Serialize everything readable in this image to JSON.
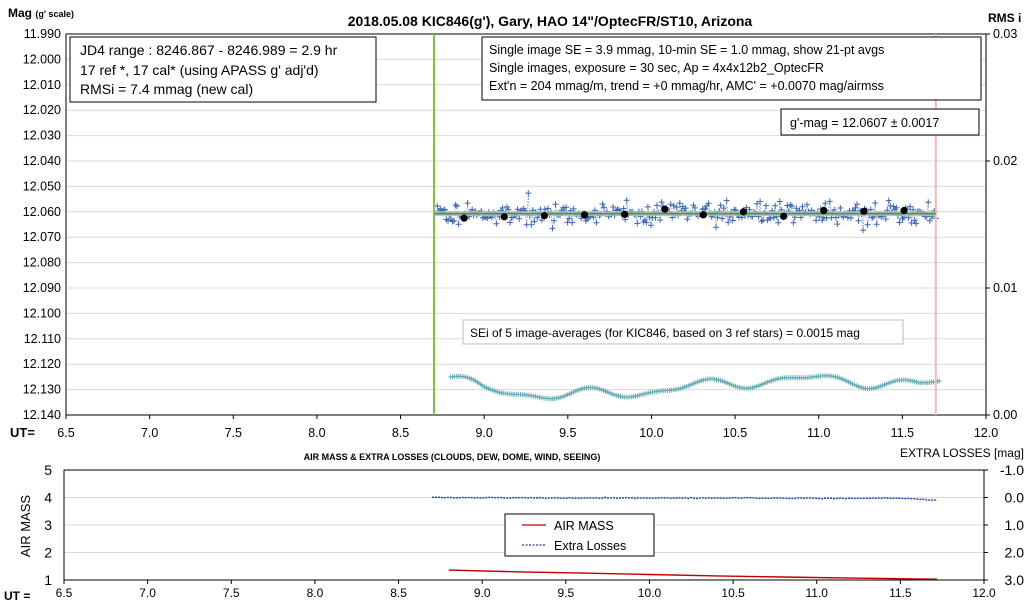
{
  "chart_data": [
    {
      "type": "scatter",
      "title": "2018.05.08  KIC846(g'),  Gary, HAO  14\"/OptecFR/ST10,  Arizona",
      "ylabel": "Mag",
      "ylabel_sub": "(g' scale)",
      "ylabel_right": "RMS i",
      "xlabel": "UT=",
      "xlim": [
        6.5,
        12.0
      ],
      "ylim": [
        12.14,
        11.99
      ],
      "ylim_right": [
        0.0,
        0.03
      ],
      "x_ticks": [
        "6.5",
        "7.0",
        "7.5",
        "8.0",
        "8.5",
        "9.0",
        "9.5",
        "10.0",
        "10.5",
        "11.0",
        "11.5",
        "12.0"
      ],
      "y_ticks": [
        "11.990",
        "12.000",
        "12.010",
        "12.020",
        "12.030",
        "12.040",
        "12.050",
        "12.060",
        "12.070",
        "12.080",
        "12.090",
        "12.100",
        "12.110",
        "12.120",
        "12.130",
        "12.140"
      ],
      "y_ticks_right": [
        "0.03",
        "0.02",
        "0.01",
        "0.00"
      ],
      "grid": true,
      "annotations": {
        "box_left": [
          "JD4 range : 8246.867 - 8246.989 =  2.9  hr",
          "17 ref *, 17 cal* (using APASS g' adj'd)",
          "RMSi = 7.4 mmag (new cal)"
        ],
        "box_right": [
          "Single image SE = 3.9 mmag, 10-min SE = 1.0 mmag, show  21-pt avgs",
          "Single images, exposure = 30 sec, Ap = 4x4x12b2_OptecFR",
          "Ext'n = 204 mmag/m, trend =  +0 mmag/hr, AMC' = +0.0070 mag/airmss"
        ],
        "gmag": "g'-mag = 12.0607 ± 0.0017",
        "sei": "SEi of 5 image-averages (for KIC846, based on 3 ref stars) = 0.0015  mag"
      },
      "vlines": [
        {
          "x": 8.7,
          "color": "#7fc241"
        },
        {
          "x": 11.7,
          "color": "#f4b8b8"
        }
      ],
      "series": [
        {
          "name": "",
          "kind": "averages",
          "color": "#000000",
          "x": [
            8.88,
            9.12,
            9.36,
            9.6,
            9.84,
            10.08,
            10.31,
            10.55,
            10.79,
            11.03,
            11.27,
            11.51
          ],
          "y": [
            12.0625,
            12.062,
            12.0615,
            12.0612,
            12.061,
            12.059,
            12.0612,
            12.06,
            12.0618,
            12.0595,
            12.0598,
            12.0595
          ]
        },
        {
          "name": "",
          "kind": "mean_line",
          "color": "#2e9e4a",
          "x": [
            8.7,
            11.7
          ],
          "y": [
            12.0607,
            12.0607
          ]
        }
      ]
    },
    {
      "type": "line",
      "title": "AIR MASS & EXTRA LOSSES (CLOUDS, DEW, DOME, WIND, SEEING)",
      "ylabel": "AIR MASS",
      "ylabel_right": "EXTRA LOSSES [mag]",
      "xlabel": "UT =",
      "xlim": [
        6.5,
        12.0
      ],
      "ylim": [
        1,
        5
      ],
      "ylim_right": [
        3.0,
        -1.0
      ],
      "x_ticks": [
        "6.5",
        "7.0",
        "7.5",
        "8.0",
        "8.5",
        "9.0",
        "9.5",
        "10.0",
        "10.5",
        "11.0",
        "11.5",
        "12.0"
      ],
      "y_ticks": [
        "1",
        "2",
        "3",
        "4",
        "5"
      ],
      "y_ticks_right": [
        "-1.0",
        "0.0",
        "1.0",
        "2.0",
        "3.0"
      ],
      "legend": "center",
      "series": [
        {
          "name": "AIR MASS",
          "color": "#c00000",
          "x": [
            8.8,
            9.2,
            9.6,
            10.0,
            10.4,
            10.8,
            11.2,
            11.6,
            11.72
          ],
          "y": [
            1.36,
            1.3,
            1.25,
            1.2,
            1.15,
            1.11,
            1.07,
            1.04,
            1.03
          ]
        },
        {
          "name": "Extra Losses",
          "color": "#1f3fa3",
          "x": [
            8.7,
            9.0,
            9.5,
            10.0,
            10.5,
            11.0,
            11.5,
            11.72
          ],
          "y": [
            0.0,
            0.01,
            0.02,
            0.02,
            0.02,
            0.03,
            0.03,
            0.1
          ]
        }
      ]
    }
  ]
}
